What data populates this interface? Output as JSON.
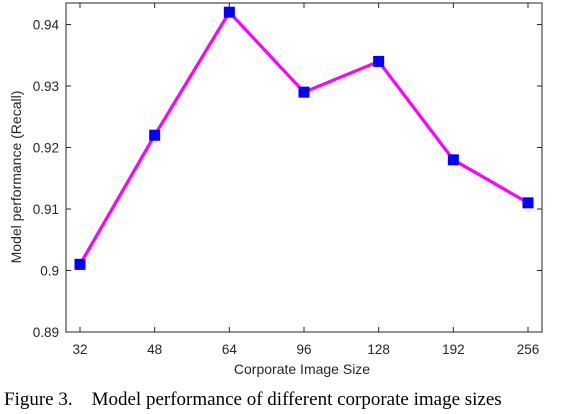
{
  "chart_data": {
    "type": "line",
    "categories": [
      "32",
      "48",
      "64",
      "96",
      "128",
      "192",
      "256"
    ],
    "series": [
      {
        "values": [
          0.901,
          0.922,
          0.942,
          0.929,
          0.934,
          0.918,
          0.911
        ]
      }
    ],
    "yticks": [
      "0.89",
      "0.9",
      "0.91",
      "0.92",
      "0.93",
      "0.94"
    ],
    "ylim": [
      0.89,
      0.9435
    ],
    "xlabel": "Corporate Image Size",
    "ylabel": "Model performance (Recall)",
    "grid": false,
    "line_color": "#ff00ff",
    "marker_color": "#0000ff",
    "marker": "square"
  },
  "caption": {
    "label": "Figure 3.",
    "text": "Model performance of different corporate image sizes"
  }
}
